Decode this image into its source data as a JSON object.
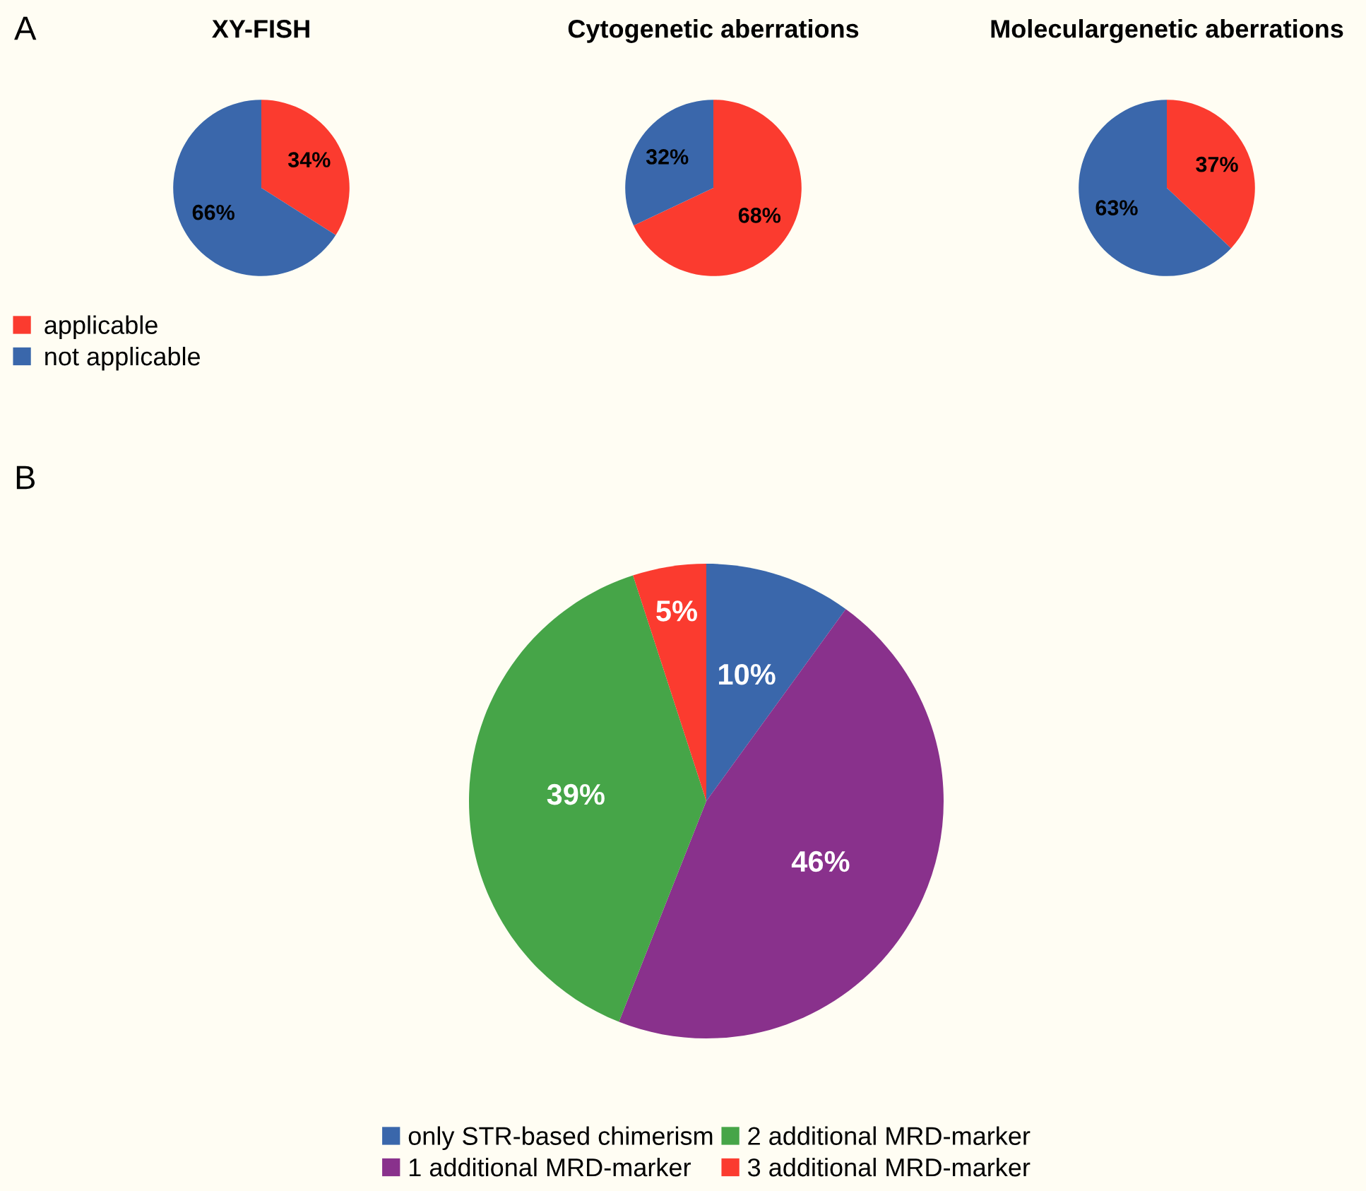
{
  "chart_data": [
    {
      "type": "pie",
      "title": "XY-FISH",
      "categories": [
        "applicable",
        "not applicable"
      ],
      "values": [
        34,
        66
      ],
      "value_labels": [
        "34%",
        "66%"
      ],
      "colors": [
        "#fb3b2f",
        "#3a67ab"
      ],
      "legend": "bottom left",
      "annotations": [
        "A"
      ]
    },
    {
      "type": "pie",
      "title": "Cytogenetic aberrations",
      "categories": [
        null,
        null
      ],
      "values": [
        68,
        32
      ],
      "value_labels": [
        "68%",
        "32%"
      ],
      "colors": [
        "#fb3b2f",
        "#3a67ab"
      ]
    },
    {
      "type": "pie",
      "title": "Moleculargenetic aberrations",
      "categories": [
        null,
        null
      ],
      "values": [
        37,
        63
      ],
      "value_labels": [
        "37%",
        "63%"
      ],
      "colors": [
        "#fb3b2f",
        "#3a67ab"
      ]
    },
    {
      "type": "pie",
      "categories": [
        "only STR-based chimerism",
        "1 additional MRD-marker",
        "2 additional MRD-marker",
        "3 additional MRD-marker"
      ],
      "values": [
        10,
        46,
        39,
        5
      ],
      "value_labels": [
        "10%",
        "46%",
        "39%",
        "5%"
      ],
      "colors": [
        "#3a67ab",
        "#89318c",
        "#46a548",
        "#fb3b2f"
      ],
      "legend": "bottom",
      "annotations": [
        "B"
      ]
    }
  ]
}
